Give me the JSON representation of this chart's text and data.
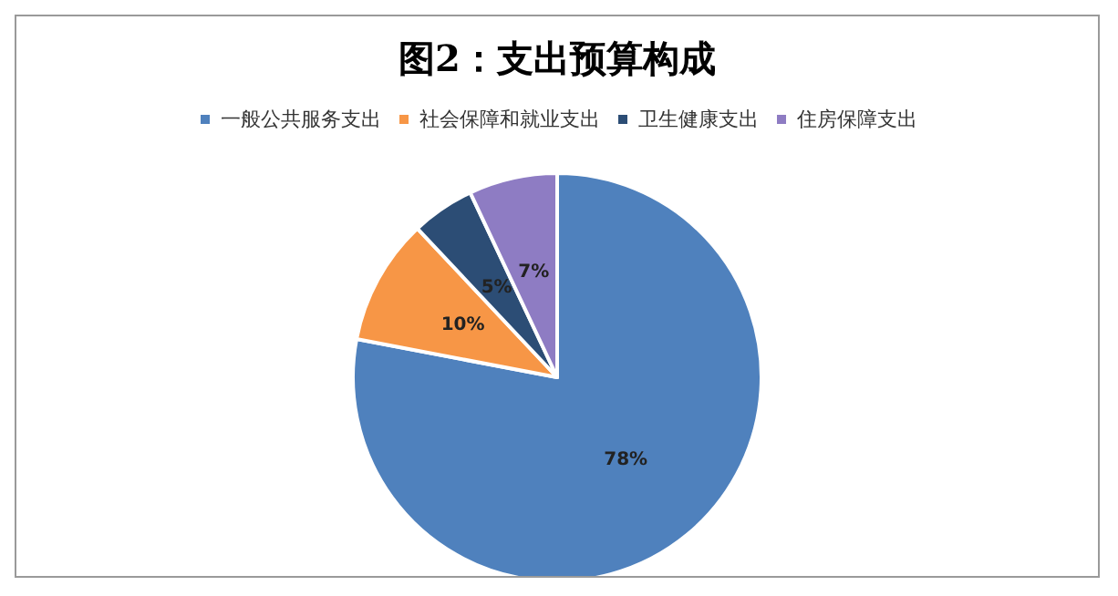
{
  "chart_data": {
    "type": "pie",
    "title": "图2：支出预算构成",
    "categories": [
      "一般公共服务支出",
      "社会保障和就业支出",
      "卫生健康支出",
      "住房保障支出"
    ],
    "values": [
      78,
      10,
      5,
      7
    ],
    "colors": [
      "#4f81bd",
      "#f79646",
      "#2c4d75",
      "#8e7cc3"
    ],
    "value_labels": [
      "78%",
      "10%",
      "5%",
      "7%"
    ],
    "legend": "top"
  }
}
